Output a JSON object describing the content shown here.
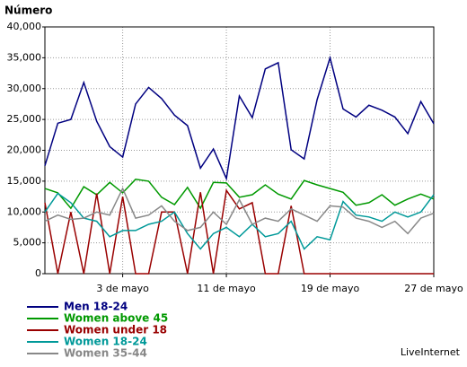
{
  "chart_data": {
    "type": "line",
    "title": "Número",
    "watermark": "LiveInternet",
    "categories": [
      null,
      null,
      null,
      null,
      null,
      null,
      "3 de mayo",
      null,
      null,
      null,
      null,
      null,
      null,
      null,
      "11 de mayo",
      null,
      null,
      null,
      null,
      null,
      null,
      null,
      "19 de mayo",
      null,
      null,
      null,
      null,
      null,
      null,
      null,
      "27 de mayo"
    ],
    "ylim": [
      0,
      40000
    ],
    "yticks": [
      0,
      {
        "value": 5000,
        "label": "5,000"
      },
      {
        "value": 10000,
        "label": "10,000"
      },
      {
        "value": 15000,
        "label": "15,000"
      },
      {
        "value": 20000,
        "label": "20,000"
      },
      {
        "value": 25000,
        "label": "25,000"
      },
      {
        "value": 30000,
        "label": "30,000"
      },
      {
        "value": 35000,
        "label": "35,000"
      },
      {
        "value": 40000,
        "label": "40,000"
      }
    ],
    "grid": true,
    "series": [
      {
        "name": "Men 18-24",
        "color": "#000080",
        "values": [
          17500,
          24400,
          25000,
          31000,
          24700,
          20600,
          18900,
          27500,
          30200,
          28400,
          25700,
          24000,
          17100,
          20200,
          15400,
          28800,
          25300,
          33200,
          34200,
          20100,
          18600,
          28200,
          35000,
          26700,
          25400,
          27300,
          26500,
          25400,
          22700,
          27900,
          24300
        ]
      },
      {
        "name": "Women above 45",
        "color": "#009900",
        "values": [
          13800,
          13100,
          10600,
          14100,
          12800,
          14800,
          13100,
          15300,
          15000,
          12400,
          11200,
          14000,
          10600,
          14800,
          14700,
          12400,
          12800,
          14400,
          12900,
          12100,
          15100,
          14400,
          13800,
          13200,
          11100,
          11500,
          12800,
          11100,
          12100,
          12900,
          12100
        ]
      },
      {
        "name": "Women under 18",
        "color": "#990000",
        "values": [
          11500,
          0,
          10000,
          0,
          13000,
          0,
          12500,
          0,
          0,
          10000,
          10000,
          0,
          13200,
          0,
          13500,
          10500,
          11500,
          0,
          0,
          11000,
          0,
          0,
          0,
          0,
          0,
          0,
          0,
          0,
          0,
          0,
          0
        ]
      },
      {
        "name": "Women 18-24",
        "color": "#009999",
        "values": [
          10000,
          13000,
          11500,
          9000,
          8500,
          6000,
          7000,
          7000,
          8000,
          8500,
          10000,
          6500,
          4000,
          6500,
          7500,
          6000,
          8000,
          6000,
          6500,
          8500,
          4000,
          6000,
          5500,
          11700,
          9500,
          9200,
          8500,
          10000,
          9200,
          10000,
          12800
        ]
      },
      {
        "name": "Women 35-44",
        "color": "#888888",
        "values": [
          8500,
          9500,
          8800,
          9000,
          10000,
          9500,
          13800,
          9000,
          9500,
          11000,
          8500,
          7000,
          7500,
          10000,
          8000,
          12000,
          8000,
          9000,
          8500,
          10500,
          9500,
          8500,
          11000,
          10800,
          9000,
          8500,
          7500,
          8500,
          6500,
          9000,
          9800
        ]
      }
    ]
  }
}
